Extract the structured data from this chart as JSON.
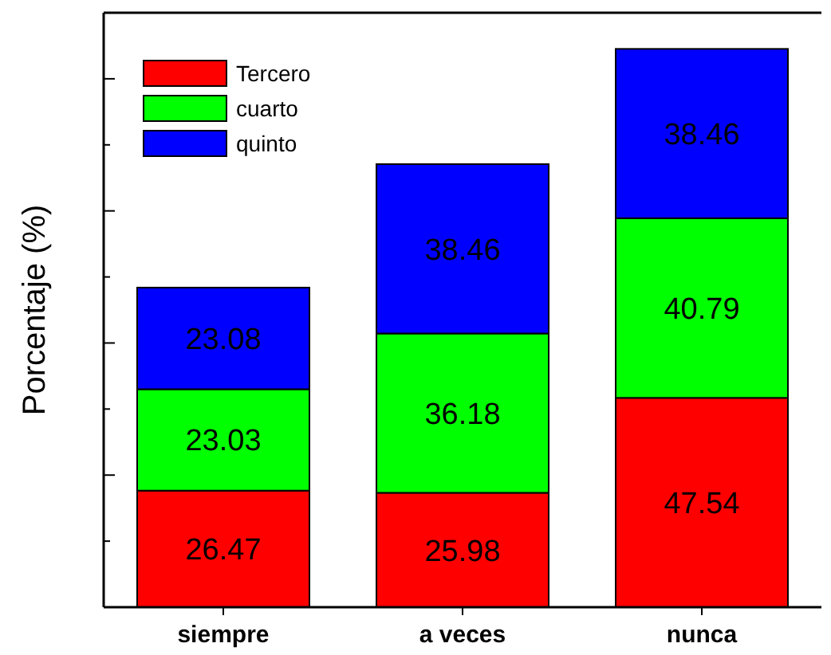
{
  "chart_data": {
    "type": "bar",
    "stacked": true,
    "ylabel": "Porcentaje (%)",
    "categories": [
      "siempre",
      "a veces",
      "nunca"
    ],
    "series": [
      {
        "name": "Tercero",
        "color": "#ff0000",
        "values": [
          26.47,
          25.98,
          47.54
        ]
      },
      {
        "name": "cuarto",
        "color": "#00ff00",
        "values": [
          23.03,
          36.18,
          40.79
        ]
      },
      {
        "name": "quinto",
        "color": "#0000ff",
        "values": [
          23.08,
          38.46,
          38.46
        ]
      }
    ],
    "ylim": [
      0,
      135
    ],
    "yticks": [
      {
        "value": 0,
        "label": null
      },
      {
        "value": 15,
        "label": null
      },
      {
        "value": 30,
        "label": null
      },
      {
        "value": 45,
        "label": null
      },
      {
        "value": 60,
        "label": null
      },
      {
        "value": 75,
        "label": null
      },
      {
        "value": 90,
        "label": null
      },
      {
        "value": 105,
        "label": null
      },
      {
        "value": 120,
        "label": null
      }
    ],
    "tick_labels": "x",
    "data_labels": true,
    "legend": "top left",
    "grid": false
  }
}
